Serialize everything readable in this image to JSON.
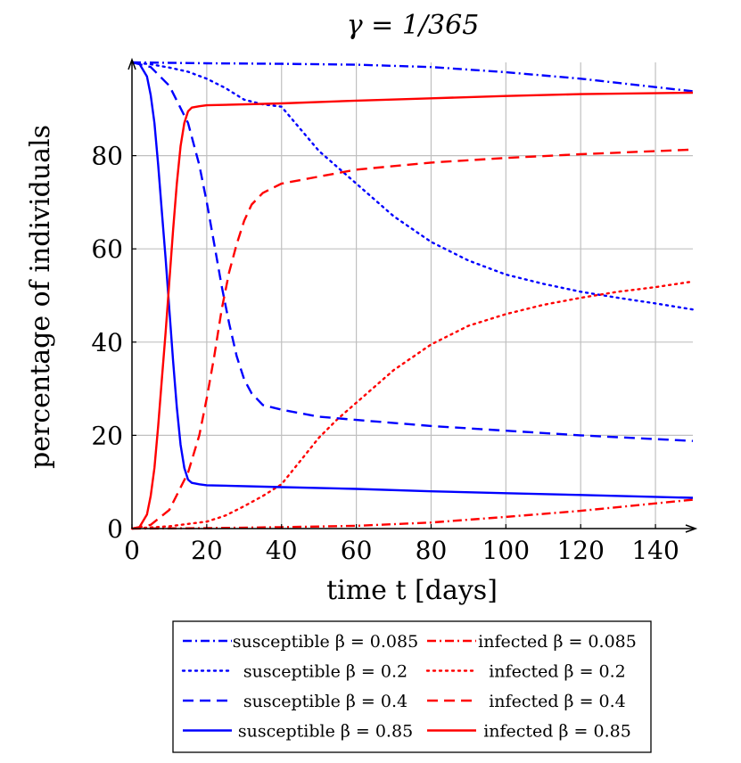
{
  "chart_data": {
    "type": "line",
    "title": "γ = 1/365",
    "xlabel": "time t [days]",
    "ylabel": "percentage of individuals",
    "xlim": [
      0,
      150
    ],
    "ylim": [
      0,
      100
    ],
    "x_ticks": [
      0,
      20,
      40,
      60,
      80,
      100,
      120,
      140
    ],
    "y_ticks": [
      0,
      20,
      40,
      60,
      80
    ],
    "x_tick_labels": [
      "0",
      "20",
      "40",
      "60",
      "80",
      "100",
      "120",
      "140"
    ],
    "y_tick_labels": [
      "0",
      "20",
      "40",
      "60",
      "80"
    ],
    "grid": true,
    "legend_position": "bottom",
    "colors": {
      "susceptible": "#0000ff",
      "infected": "#ff0000"
    },
    "series": [
      {
        "name": "susceptible β = 0.085",
        "color": "#0000ff",
        "dash": "dashdot",
        "x": [
          0,
          10,
          20,
          40,
          60,
          80,
          100,
          120,
          150
        ],
        "y": [
          100,
          99.9,
          99.8,
          99.7,
          99.5,
          99.0,
          97.9,
          96.5,
          93.8
        ]
      },
      {
        "name": "infected β = 0.085",
        "color": "#ff0000",
        "dash": "dashdot",
        "x": [
          0,
          20,
          40,
          60,
          80,
          100,
          120,
          150
        ],
        "y": [
          0,
          0.1,
          0.3,
          0.6,
          1.3,
          2.5,
          3.8,
          6.2
        ]
      },
      {
        "name": "susceptible β = 0.2",
        "color": "#0000ff",
        "dash": "dotted",
        "x": [
          0,
          5,
          10,
          15,
          20,
          25,
          30,
          35,
          40,
          50,
          60,
          70,
          80,
          90,
          100,
          110,
          120,
          130,
          140,
          150
        ],
        "y": [
          100,
          99.6,
          98.9,
          98,
          96.5,
          94.5,
          92,
          91,
          90.5,
          81,
          74,
          67,
          61.5,
          57.5,
          54.5,
          52.5,
          50.8,
          49.5,
          48.3,
          47
        ]
      },
      {
        "name": "infected β = 0.2",
        "color": "#ff0000",
        "dash": "dotted",
        "x": [
          0,
          10,
          20,
          25,
          30,
          35,
          40,
          45,
          50,
          55,
          60,
          70,
          80,
          90,
          100,
          110,
          120,
          130,
          140,
          150
        ],
        "y": [
          0,
          0.5,
          1.5,
          2.8,
          4.8,
          7.0,
          9.5,
          14.5,
          19.5,
          23.5,
          27,
          34,
          39.5,
          43.5,
          46,
          48,
          49.5,
          50.8,
          51.8,
          53
        ]
      },
      {
        "name": "susceptible β = 0.4",
        "color": "#0000ff",
        "dash": "dashed",
        "x": [
          0,
          5,
          10,
          15,
          18,
          20,
          22,
          24,
          26,
          28,
          30,
          32,
          35,
          40,
          50,
          60,
          80,
          100,
          120,
          150
        ],
        "y": [
          100,
          99,
          95,
          87,
          78,
          70,
          61,
          52,
          44,
          37,
          32,
          29,
          26.5,
          25.5,
          24,
          23.3,
          22,
          21,
          20,
          18.8
        ]
      },
      {
        "name": "infected β = 0.4",
        "color": "#ff0000",
        "dash": "dashed",
        "x": [
          0,
          5,
          10,
          15,
          18,
          20,
          22,
          24,
          26,
          28,
          30,
          32,
          35,
          40,
          50,
          60,
          80,
          100,
          120,
          150
        ],
        "y": [
          0,
          0.8,
          4,
          12,
          20,
          28,
          37,
          47,
          55,
          61,
          66,
          69.5,
          72,
          74,
          75.5,
          77,
          78.5,
          79.5,
          80.3,
          81.3
        ]
      },
      {
        "name": "susceptible β = 0.85",
        "color": "#0000ff",
        "dash": "solid",
        "x": [
          0,
          2,
          4,
          5,
          6,
          7,
          8,
          9,
          10,
          11,
          12,
          13,
          14,
          15,
          16,
          18,
          20,
          40,
          60,
          80,
          100,
          120,
          150
        ],
        "y": [
          100,
          99.7,
          97,
          93,
          87,
          78,
          68,
          58,
          47,
          36,
          26,
          18,
          13,
          10.5,
          9.8,
          9.5,
          9.3,
          8.9,
          8.5,
          8,
          7.6,
          7.2,
          6.6
        ]
      },
      {
        "name": "infected β = 0.85",
        "color": "#ff0000",
        "dash": "solid",
        "x": [
          0,
          2,
          4,
          5,
          6,
          7,
          8,
          9,
          10,
          11,
          12,
          13,
          14,
          15,
          16,
          18,
          20,
          40,
          60,
          80,
          100,
          120,
          150
        ],
        "y": [
          0,
          0.3,
          3,
          7,
          13,
          22,
          32,
          42,
          53,
          64,
          74,
          82,
          87,
          89.5,
          90.3,
          90.6,
          90.8,
          91.2,
          91.8,
          92.3,
          92.8,
          93.2,
          93.5
        ]
      }
    ]
  }
}
